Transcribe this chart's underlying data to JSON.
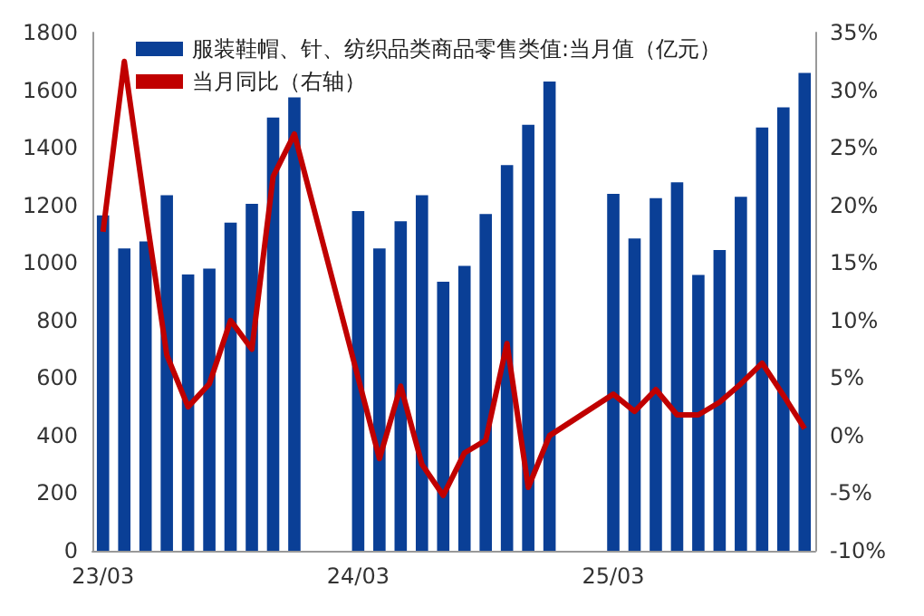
{
  "chart_data": {
    "type": "bar",
    "categories": [
      "23/03",
      null,
      null,
      null,
      null,
      null,
      null,
      null,
      null,
      null,
      null,
      null,
      "24/03",
      null,
      null,
      null,
      null,
      null,
      null,
      null,
      null,
      null,
      null,
      null,
      "25/03",
      null,
      null,
      null,
      null,
      null,
      null,
      null,
      null,
      null
    ],
    "series": [
      {
        "name": "服装鞋帽、针、纺织品类商品零售类值:当月值（亿元）",
        "color": "#0a3f96",
        "values": [
          1165,
          1050,
          1075,
          1235,
          960,
          980,
          1140,
          1205,
          1505,
          1575,
          null,
          null,
          1180,
          1050,
          1145,
          1235,
          935,
          990,
          1170,
          1340,
          1480,
          1630,
          null,
          null,
          1240,
          1085,
          1225,
          1280,
          958,
          1045,
          1230,
          1470,
          1540,
          1660
        ]
      },
      {
        "name": "当月同比（右轴）",
        "type": "line",
        "axis": "y2",
        "color": "#c00000",
        "values": [
          17.7,
          32.5,
          19.5,
          7,
          2.5,
          4.5,
          10,
          7.5,
          22.5,
          26.2,
          null,
          null,
          5,
          -2,
          4.3,
          -2.5,
          -5.2,
          -1.5,
          -0.4,
          8,
          -4.5,
          0,
          null,
          null,
          3.6,
          2.1,
          4,
          1.8,
          1.8,
          2.9,
          4.5,
          6.3,
          3.5,
          0.6
        ]
      }
    ],
    "ylim": [
      0,
      1800
    ],
    "yticks": [
      0,
      200,
      400,
      600,
      800,
      1000,
      1200,
      1400,
      1600,
      1800
    ],
    "y2lim": [
      -10,
      35
    ],
    "y2ticks": [
      {
        "value": -10,
        "label": "-10%"
      },
      {
        "value": -5,
        "label": "-5%"
      },
      {
        "value": 0,
        "label": "0%"
      },
      {
        "value": 5,
        "label": "5%"
      },
      {
        "value": 10,
        "label": "10%"
      },
      {
        "value": 15,
        "label": "15%"
      },
      {
        "value": 20,
        "label": "20%"
      },
      {
        "value": 25,
        "label": "25%"
      },
      {
        "value": 30,
        "label": "30%"
      },
      {
        "value": 35,
        "label": "35%"
      }
    ],
    "legend": "top left",
    "grid": false,
    "marker": "none",
    "line_style": "solid"
  }
}
